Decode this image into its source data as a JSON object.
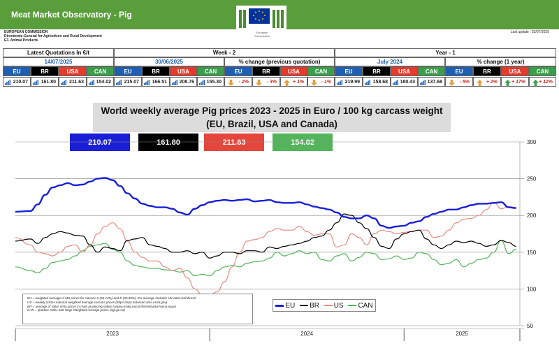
{
  "header": {
    "title": "Meat Market Observatory - Pig",
    "org_lines": [
      "EUROPEAN COMMISSION",
      "Directorate-General for Agriculture and Rural Development",
      "E3. Animal Products"
    ],
    "last_update": "Last update :  23/07/2025",
    "logo_caption": "European Commission"
  },
  "quotes": {
    "latest_label": "Latest Quotations In €/t",
    "week_label": "Week - 2",
    "year_label": "Year - 1",
    "latest_date": "14/07/2025",
    "week_date": "30/06/2025",
    "week_change_label": "% change (previous quotation)",
    "year_date": "July 2024",
    "year_change_label": "% change (1 year)",
    "markets": [
      "EU",
      "BR",
      "USA",
      "CAN"
    ],
    "latest_values": [
      "210.07",
      "161.80",
      "211.63",
      "154.02"
    ],
    "week_values": [
      "215.07",
      "166.51",
      "208.76",
      "155.30"
    ],
    "week_changes": [
      "- 2%",
      "- 3%",
      "+ 1%",
      "- 1%"
    ],
    "week_change_dirs": [
      "down",
      "down",
      "up",
      "down"
    ],
    "year_values": [
      "219.99",
      "158.68",
      "180.43",
      "137.68"
    ],
    "year_changes": [
      "- 5%",
      "+ 2%",
      "+ 17%",
      "+ 12%"
    ],
    "year_change_dirs": [
      "down",
      "up",
      "up",
      "up"
    ]
  },
  "colors": {
    "eu": "#1a1fd6",
    "br": "#000000",
    "us": "#e88a82",
    "can": "#53b45b",
    "header_green": "#5a9e3c"
  },
  "chart_data": {
    "type": "line",
    "title": "World weekly average Pig prices 2023 - 2025  in Euro / 100 kg carcass weight",
    "subtitle": "(EU, Brazil, USA and Canada)",
    "price_boxes": [
      "210.07",
      "161.80",
      "211.63",
      "154.02"
    ],
    "ylim": [
      50,
      300
    ],
    "yticks": [
      "300",
      "250",
      "200",
      "150",
      "100",
      "50"
    ],
    "year_labels": [
      "2023",
      "2024",
      "2025"
    ],
    "x_range_weeks": [
      0,
      135
    ],
    "year_starts": [
      0,
      52,
      104
    ],
    "series": [
      {
        "name": "EU",
        "color": "#1a1fd6",
        "width": 2.4,
        "x": [
          0,
          4,
          6,
          8,
          10,
          12,
          14,
          16,
          18,
          20,
          22,
          24,
          26,
          28,
          30,
          32,
          34,
          36,
          38,
          40,
          42,
          44,
          46,
          48,
          50,
          52,
          54,
          56,
          58,
          60,
          62,
          64,
          66,
          68,
          70,
          72,
          74,
          76,
          78,
          80,
          82,
          84,
          86,
          88,
          90,
          92,
          94,
          96,
          98,
          100,
          102,
          104,
          106,
          108,
          110,
          112,
          114,
          116,
          118,
          120,
          122,
          124,
          126,
          128,
          130,
          132,
          134
        ],
        "y": [
          205,
          206,
          215,
          228,
          238,
          241,
          244,
          241,
          242,
          246,
          250,
          251,
          248,
          240,
          230,
          223,
          216,
          213,
          211,
          211,
          209,
          204,
          201,
          209,
          214,
          218,
          220,
          221,
          220,
          221,
          222,
          219,
          220,
          221,
          218,
          217,
          217,
          218,
          215,
          212,
          210,
          208,
          204,
          198,
          196,
          196,
          200,
          196,
          186,
          183,
          185,
          186,
          190,
          192,
          198,
          202,
          205,
          208,
          208,
          211,
          214,
          216,
          216,
          217,
          218,
          211,
          210
        ]
      },
      {
        "name": "BR",
        "color": "#000000",
        "width": 1.2,
        "x": [
          0,
          4,
          6,
          8,
          10,
          12,
          14,
          16,
          18,
          20,
          22,
          24,
          26,
          28,
          30,
          32,
          34,
          36,
          38,
          40,
          42,
          44,
          46,
          48,
          50,
          52,
          54,
          56,
          58,
          60,
          62,
          64,
          66,
          68,
          70,
          72,
          74,
          76,
          78,
          80,
          82,
          84,
          86,
          88,
          90,
          92,
          94,
          96,
          98,
          100,
          102,
          104,
          106,
          108,
          110,
          112,
          114,
          116,
          118,
          120,
          122,
          124,
          126,
          128,
          130,
          132,
          134
        ],
        "y": [
          165,
          168,
          162,
          170,
          175,
          178,
          176,
          173,
          172,
          160,
          150,
          157,
          155,
          152,
          166,
          168,
          170,
          160,
          158,
          155,
          150,
          150,
          152,
          148,
          150,
          142,
          145,
          150,
          150,
          148,
          152,
          152,
          150,
          157,
          155,
          158,
          160,
          162,
          165,
          170,
          172,
          180,
          190,
          202,
          200,
          190,
          182,
          170,
          158,
          155,
          168,
          175,
          178,
          180,
          168,
          160,
          155,
          160,
          165,
          163,
          165,
          162,
          158,
          160,
          166,
          163,
          158
        ]
      },
      {
        "name": "US",
        "color": "#e88a82",
        "width": 1.2,
        "x": [
          0,
          4,
          6,
          8,
          10,
          12,
          14,
          16,
          18,
          20,
          22,
          24,
          26,
          28,
          30,
          32,
          34,
          36,
          38,
          40,
          42,
          44,
          46,
          48,
          50,
          52,
          54,
          56,
          58,
          60,
          62,
          64,
          66,
          68,
          70,
          72,
          74,
          76,
          78,
          80,
          82,
          84,
          86,
          88,
          90,
          92,
          94,
          96,
          98,
          100,
          102,
          104,
          106,
          108,
          110,
          112,
          114,
          116,
          118,
          120,
          122,
          124,
          126,
          128,
          130,
          132,
          134
        ],
        "y": [
          170,
          160,
          150,
          148,
          145,
          150,
          158,
          160,
          150,
          160,
          175,
          185,
          190,
          182,
          165,
          150,
          143,
          138,
          138,
          130,
          125,
          128,
          115,
          100,
          92,
          92,
          96,
          110,
          130,
          150,
          165,
          167,
          170,
          178,
          182,
          180,
          180,
          185,
          178,
          173,
          175,
          175,
          157,
          160,
          175,
          170,
          160,
          175,
          180,
          178,
          175,
          177,
          178,
          180,
          180,
          170,
          172,
          180,
          190,
          195,
          196,
          200,
          208,
          218,
          209,
          212,
          211
        ]
      },
      {
        "name": "CAN",
        "color": "#53b45b",
        "width": 1.2,
        "x": [
          0,
          4,
          6,
          8,
          10,
          12,
          14,
          16,
          18,
          20,
          22,
          24,
          26,
          28,
          30,
          32,
          34,
          36,
          38,
          40,
          42,
          44,
          46,
          48,
          50,
          52,
          54,
          56,
          58,
          60,
          62,
          64,
          66,
          68,
          70,
          72,
          74,
          76,
          78,
          80,
          82,
          84,
          86,
          88,
          90,
          92,
          94,
          96,
          98,
          100,
          102,
          104,
          106,
          108,
          110,
          112,
          114,
          116,
          118,
          120,
          122,
          124,
          126,
          128,
          130,
          132,
          134
        ],
        "y": [
          130,
          125,
          122,
          128,
          136,
          138,
          140,
          145,
          152,
          158,
          160,
          162,
          154,
          150,
          138,
          132,
          130,
          128,
          128,
          126,
          125,
          123,
          125,
          118,
          120,
          118,
          125,
          130,
          132,
          130,
          135,
          137,
          138,
          142,
          150,
          145,
          148,
          152,
          148,
          150,
          140,
          138,
          145,
          148,
          138,
          143,
          150,
          148,
          140,
          141,
          145,
          140,
          142,
          150,
          148,
          140,
          133,
          135,
          140,
          130,
          135,
          140,
          142,
          150,
          166,
          148,
          154
        ]
      }
    ],
    "legend": [
      "EU",
      "BR",
      "US",
      "CAN"
    ],
    "notes": [
      "EU    = weighted average of MS prices for classes S (64.12%) and E (35.88%). EU average includes UK data  until Brexit",
      "US    = weekly USDA national weighted average carcass prices (https://mpr.datamart.ams.usda.gov)",
      "BR    = average of Valor Vista prices in main producing states (cepea.esalq.usp.br/br/indicador/suino.aspx)",
      "CAN = Quebec Index 100 Hogs Weighted Average prices (agr.gc.ca)"
    ]
  }
}
